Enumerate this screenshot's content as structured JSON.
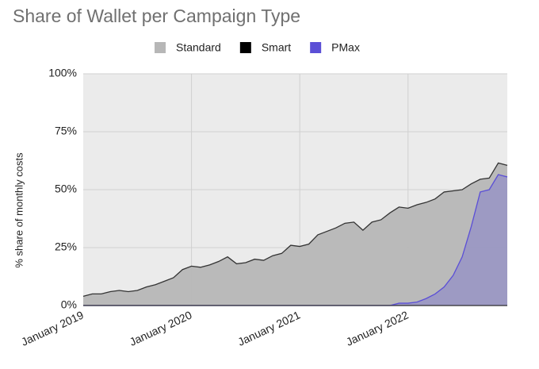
{
  "chart_data": {
    "type": "area",
    "title": "Share of Wallet per Campaign Type",
    "y_label": "% share of monthly costs",
    "categories": [
      "January 2019",
      null,
      null,
      null,
      null,
      null,
      null,
      null,
      null,
      null,
      null,
      null,
      "January 2020",
      null,
      null,
      null,
      null,
      null,
      null,
      null,
      null,
      null,
      null,
      null,
      "January 2021",
      null,
      null,
      null,
      null,
      null,
      null,
      null,
      null,
      null,
      null,
      null,
      "January 2022",
      null,
      null,
      null,
      null,
      null,
      null,
      null,
      null,
      null,
      null,
      null
    ],
    "series": [
      {
        "name": "Standard",
        "color": "#b7b7b7",
        "values": [
          4,
          5,
          5,
          6,
          6.5,
          6,
          6.5,
          8,
          9,
          10.5,
          12,
          15.5,
          17,
          16.5,
          17.5,
          19,
          21,
          18,
          18.5,
          20,
          19.5,
          21.5,
          22.5,
          26,
          25.5,
          26.5,
          30.5,
          32,
          33.5,
          35.5,
          36,
          32.5,
          36,
          37,
          40,
          42.5,
          42,
          43.5,
          44.5,
          46,
          49,
          49.5,
          50,
          52.5,
          54.5,
          55,
          61.5,
          60.5
        ]
      },
      {
        "name": "Smart",
        "color": "#000000",
        "values": [
          0,
          0,
          0,
          0,
          0,
          0,
          0,
          0,
          0,
          0,
          0,
          0,
          0,
          0,
          0,
          0,
          0,
          0,
          0,
          0,
          0,
          0,
          0,
          0,
          0,
          0,
          0,
          0,
          0,
          0,
          0,
          0,
          0,
          0,
          0,
          0,
          0,
          0,
          0,
          0,
          0,
          0,
          0,
          0,
          0,
          0,
          0,
          0
        ]
      },
      {
        "name": "PMax",
        "color": "#5b4fd6",
        "values": [
          0,
          0,
          0,
          0,
          0,
          0,
          0,
          0,
          0,
          0,
          0,
          0,
          0,
          0,
          0,
          0,
          0,
          0,
          0,
          0,
          0,
          0,
          0,
          0,
          0,
          0,
          0,
          0,
          0,
          0,
          0,
          0,
          0,
          0,
          0,
          1,
          1,
          1.5,
          3,
          5,
          8,
          13,
          21,
          34,
          49,
          50,
          56.5,
          55.5
        ]
      }
    ],
    "ylim": [
      0,
      100
    ],
    "yticks": [
      {
        "value": 0,
        "label": "0%"
      },
      {
        "value": 25,
        "label": "25%"
      },
      {
        "value": 50,
        "label": "50%"
      },
      {
        "value": 75,
        "label": "75%"
      },
      {
        "value": 100,
        "label": "100%"
      }
    ],
    "grid": true,
    "legend": "top"
  }
}
